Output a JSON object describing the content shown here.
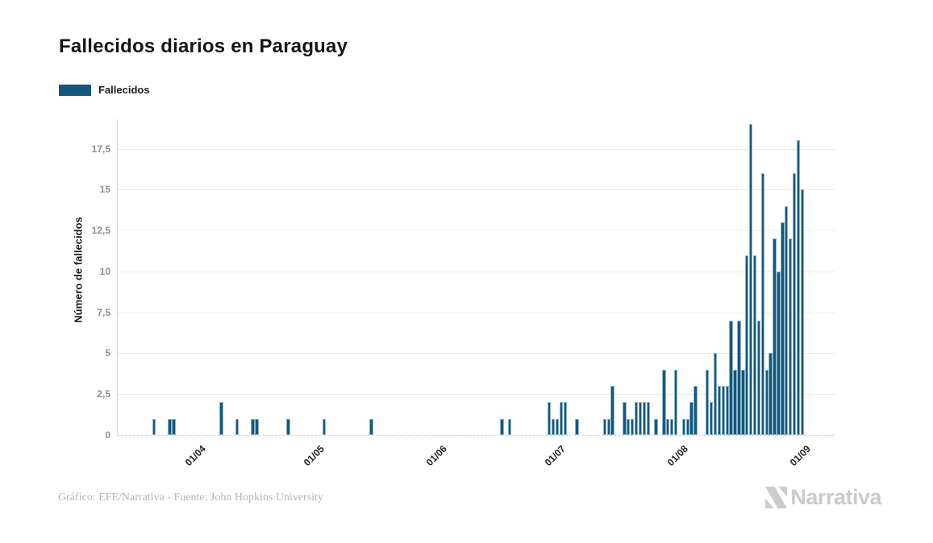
{
  "title": "Fallecidos diarios en Paraguay",
  "legend": {
    "label": "Fallecidos",
    "swatch_color": "#14577c"
  },
  "chart_data": {
    "type": "bar",
    "title": "Fallecidos diarios en Paraguay",
    "series_name": "Fallecidos",
    "xlabel": "",
    "ylabel": "Número de fallecidos",
    "x": [
      "2020-03-22",
      "2020-03-26",
      "2020-03-27",
      "2020-04-08",
      "2020-04-12",
      "2020-04-16",
      "2020-04-17",
      "2020-04-25",
      "2020-05-04",
      "2020-05-16",
      "2020-06-18",
      "2020-06-20",
      "2020-06-30",
      "2020-07-01",
      "2020-07-02",
      "2020-07-03",
      "2020-07-04",
      "2020-07-07",
      "2020-07-14",
      "2020-07-15",
      "2020-07-16",
      "2020-07-19",
      "2020-07-20",
      "2020-07-21",
      "2020-07-22",
      "2020-07-23",
      "2020-07-24",
      "2020-07-25",
      "2020-07-27",
      "2020-07-29",
      "2020-07-30",
      "2020-07-31",
      "2020-08-01",
      "2020-08-03",
      "2020-08-04",
      "2020-08-05",
      "2020-08-06",
      "2020-08-09",
      "2020-08-10",
      "2020-08-11",
      "2020-08-12",
      "2020-08-13",
      "2020-08-14",
      "2020-08-15",
      "2020-08-16",
      "2020-08-17",
      "2020-08-18",
      "2020-08-19",
      "2020-08-20",
      "2020-08-21",
      "2020-08-22",
      "2020-08-23",
      "2020-08-24",
      "2020-08-25",
      "2020-08-26",
      "2020-08-27",
      "2020-08-28",
      "2020-08-29",
      "2020-08-30",
      "2020-08-31",
      "2020-09-01",
      "2020-09-02"
    ],
    "values": [
      1,
      1,
      1,
      2,
      1,
      1,
      1,
      1,
      1,
      1,
      1,
      1,
      2,
      1,
      1,
      2,
      2,
      1,
      1,
      1,
      3,
      2,
      1,
      1,
      2,
      2,
      2,
      2,
      1,
      4,
      1,
      1,
      4,
      1,
      1,
      2,
      3,
      4,
      2,
      5,
      3,
      3,
      3,
      7,
      4,
      7,
      4,
      11,
      19,
      11,
      7,
      16,
      4,
      5,
      12,
      10,
      13,
      14,
      12,
      16,
      18,
      15
    ],
    "ylim": [
      0,
      19.5
    ],
    "xlim": [
      "2020-03-12",
      "2020-09-09"
    ],
    "yticks": [
      0,
      2.5,
      5,
      7.5,
      10,
      12.5,
      15,
      17.5
    ],
    "ytick_labels": [
      "0",
      "2,5",
      "5",
      "7,5",
      "10",
      "12,5",
      "15",
      "17,5"
    ],
    "xticks": [
      "2020-04-01",
      "2020-05-01",
      "2020-06-01",
      "2020-07-01",
      "2020-08-01",
      "2020-09-01"
    ],
    "xtick_labels": [
      "01/04",
      "01/05",
      "01/06",
      "01/07",
      "01/08",
      "01/09"
    ],
    "grid": true,
    "legend_position": "top-left",
    "bar_color": "#14577c"
  },
  "footer": {
    "credit": "Gráfico: EFE/Narrativa - Fuente: John Hopkins University"
  },
  "logo": {
    "text": "Narrativa"
  }
}
